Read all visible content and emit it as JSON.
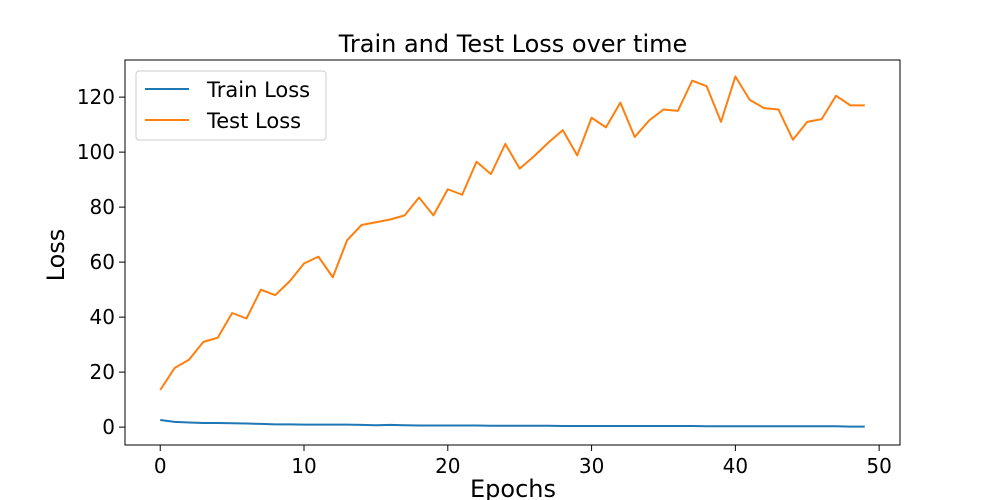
{
  "chart_data": {
    "type": "line",
    "title": "Train and Test Loss over time",
    "xlabel": "Epochs",
    "ylabel": "Loss",
    "xlim": [
      -2.45,
      51.45
    ],
    "ylim": [
      -6.5,
      133.5
    ],
    "xticks": [
      0,
      10,
      20,
      30,
      40,
      50
    ],
    "yticks": [
      0,
      20,
      40,
      60,
      80,
      100,
      120
    ],
    "grid": false,
    "legend_position": "top-left",
    "x": [
      0,
      1,
      2,
      3,
      4,
      5,
      6,
      7,
      8,
      9,
      10,
      11,
      12,
      13,
      14,
      15,
      16,
      17,
      18,
      19,
      20,
      21,
      22,
      23,
      24,
      25,
      26,
      27,
      28,
      29,
      30,
      31,
      32,
      33,
      34,
      35,
      36,
      37,
      38,
      39,
      40,
      41,
      42,
      43,
      44,
      45,
      46,
      47,
      48,
      49
    ],
    "series": [
      {
        "name": "Train Loss",
        "color": "#1f77b4",
        "values": [
          2.6,
          1.9,
          1.7,
          1.5,
          1.5,
          1.4,
          1.3,
          1.2,
          1.0,
          1.0,
          0.9,
          0.9,
          0.9,
          0.9,
          0.8,
          0.7,
          0.8,
          0.7,
          0.6,
          0.6,
          0.6,
          0.6,
          0.6,
          0.5,
          0.5,
          0.5,
          0.5,
          0.5,
          0.4,
          0.4,
          0.4,
          0.4,
          0.4,
          0.4,
          0.4,
          0.4,
          0.4,
          0.4,
          0.3,
          0.3,
          0.3,
          0.3,
          0.3,
          0.3,
          0.3,
          0.3,
          0.3,
          0.3,
          0.2,
          0.2
        ]
      },
      {
        "name": "Test Loss",
        "color": "#ff7f0e",
        "values": [
          13.5,
          21.5,
          24.5,
          31,
          32.5,
          41.5,
          39.5,
          50,
          48,
          53,
          59.5,
          62,
          54.5,
          68,
          73.5,
          74.5,
          75.5,
          77,
          83.5,
          77,
          86.5,
          84.5,
          96.5,
          92,
          103,
          94,
          98.5,
          103.5,
          108,
          98.8,
          112.5,
          109,
          118,
          105.5,
          111.5,
          115.5,
          115,
          126,
          124,
          111,
          127.5,
          119,
          116,
          115.5,
          104.5,
          111,
          112,
          120.5,
          117,
          117
        ]
      }
    ]
  }
}
